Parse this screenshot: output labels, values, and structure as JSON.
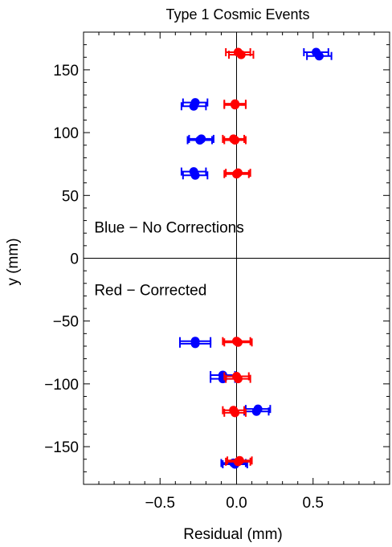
{
  "chart_data": {
    "type": "scatter",
    "title": "Type 1 Cosmic Events",
    "xlabel": "Residual (mm)",
    "ylabel": "y (mm)",
    "xlim": [
      -1.0,
      1.0
    ],
    "ylim": [
      -180,
      180
    ],
    "x_ticks": [
      -0.5,
      0.0,
      0.5
    ],
    "x_tick_labels": [
      "−0.5",
      "0.0",
      "0.5"
    ],
    "y_ticks": [
      -150,
      -100,
      -50,
      0,
      50,
      100,
      150
    ],
    "y_tick_labels": [
      "−150",
      "−100",
      "−50",
      "0",
      "50",
      "100",
      "150"
    ],
    "grid": false,
    "zero_lines": true,
    "series": [
      {
        "color": "#0000ff",
        "points": [
          {
            "x": 0.52,
            "y": 164,
            "xerr": 0.08
          },
          {
            "x": 0.54,
            "y": 161,
            "xerr": 0.08
          },
          {
            "x": -0.27,
            "y": 124,
            "xerr": 0.08
          },
          {
            "x": -0.28,
            "y": 121,
            "xerr": 0.08
          },
          {
            "x": -0.23,
            "y": 95,
            "xerr": 0.08
          },
          {
            "x": -0.24,
            "y": 94,
            "xerr": 0.08
          },
          {
            "x": -0.28,
            "y": 69,
            "xerr": 0.08
          },
          {
            "x": -0.27,
            "y": 66,
            "xerr": 0.08
          },
          {
            "x": -0.27,
            "y": -66,
            "xerr": 0.1
          },
          {
            "x": -0.27,
            "y": -68,
            "xerr": 0.1
          },
          {
            "x": -0.09,
            "y": -93,
            "xerr": 0.08
          },
          {
            "x": -0.09,
            "y": -96,
            "xerr": 0.08
          },
          {
            "x": 0.14,
            "y": -120,
            "xerr": 0.08
          },
          {
            "x": 0.13,
            "y": -122,
            "xerr": 0.08
          },
          {
            "x": -0.02,
            "y": -163,
            "xerr": 0.08
          },
          {
            "x": -0.01,
            "y": -164,
            "xerr": 0.08
          }
        ]
      },
      {
        "color": "#ff0000",
        "points": [
          {
            "x": 0.01,
            "y": 164,
            "xerr": 0.08
          },
          {
            "x": 0.03,
            "y": 162,
            "xerr": 0.08
          },
          {
            "x": -0.01,
            "y": 123,
            "xerr": 0.07
          },
          {
            "x": -0.01,
            "y": 122,
            "xerr": 0.07
          },
          {
            "x": -0.02,
            "y": 95,
            "xerr": 0.07
          },
          {
            "x": -0.01,
            "y": 94,
            "xerr": 0.07
          },
          {
            "x": 0.01,
            "y": 68,
            "xerr": 0.08
          },
          {
            "x": 0.0,
            "y": 67,
            "xerr": 0.08
          },
          {
            "x": 0.0,
            "y": -66,
            "xerr": 0.09
          },
          {
            "x": 0.01,
            "y": -67,
            "xerr": 0.09
          },
          {
            "x": 0.0,
            "y": -94,
            "xerr": 0.08
          },
          {
            "x": 0.01,
            "y": -96,
            "xerr": 0.08
          },
          {
            "x": -0.02,
            "y": -121,
            "xerr": 0.07
          },
          {
            "x": -0.01,
            "y": -123,
            "xerr": 0.07
          },
          {
            "x": 0.01,
            "y": -162,
            "xerr": 0.08
          },
          {
            "x": 0.02,
            "y": -161,
            "xerr": 0.08
          }
        ]
      }
    ],
    "annotations": [
      {
        "text": "Blue − No Corrections",
        "x": -0.93,
        "y": 25
      },
      {
        "text": "Red − Corrected",
        "x": -0.93,
        "y": -25
      }
    ]
  }
}
